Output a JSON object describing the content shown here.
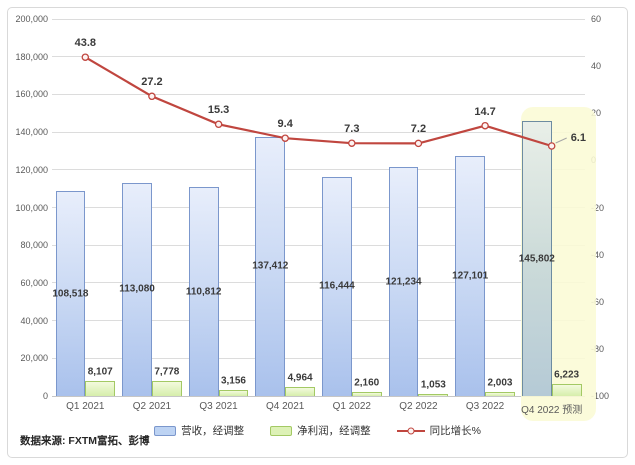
{
  "chart_data": {
    "type": "bar+line combo",
    "categories": [
      "Q1 2021",
      "Q2 2021",
      "Q3 2021",
      "Q4 2021",
      "Q1 2022",
      "Q2 2022",
      "Q3 2022",
      "Q4 2022 预测"
    ],
    "series": [
      {
        "name": "营收，经调整",
        "type": "bar",
        "axis": "left",
        "values": [
          108518,
          113080,
          110812,
          137412,
          116444,
          121234,
          127101,
          145802
        ],
        "labels": [
          "108,518",
          "113,080",
          "110,812",
          "137,412",
          "116,444",
          "121,234",
          "127,101",
          "145,802"
        ]
      },
      {
        "name": "净利润，经调整",
        "type": "bar",
        "axis": "left",
        "values": [
          8107,
          7778,
          3156,
          4964,
          2160,
          1053,
          2003,
          6223
        ],
        "labels": [
          "8,107",
          "7,778",
          "3,156",
          "4,964",
          "2,160",
          "1,053",
          "2,003",
          "6,223"
        ]
      },
      {
        "name": "同比增长%",
        "type": "line",
        "axis": "right",
        "values": [
          43.8,
          27.2,
          15.3,
          9.4,
          7.3,
          7.2,
          14.7,
          6.1
        ],
        "labels": [
          "43.8",
          "27.2",
          "15.3",
          "9.4",
          "7.3",
          "7.2",
          "14.7",
          "6.1"
        ]
      }
    ],
    "left_axis": {
      "min": 0,
      "max": 200000,
      "step": 20000,
      "tick_labels": [
        "200,000",
        "180,000",
        "160,000",
        "140,000",
        "120,000",
        "100,000",
        "80,000",
        "60,000",
        "40,000",
        "20,000",
        "0"
      ]
    },
    "right_axis": {
      "min": -100,
      "max": 60,
      "step": 20,
      "tick_labels": [
        "60",
        "40",
        "20",
        "0",
        "-20",
        "-40",
        "-60",
        "-80",
        "-100"
      ]
    },
    "highlight_category": "Q4 2022 预测",
    "grid": true,
    "legend_position": "bottom"
  },
  "colors": {
    "revenue_bar": "#aecbf0",
    "revenue_border": "#7b97cc",
    "profit_bar": "#ddf1b6",
    "profit_border": "#a3c964",
    "growth_line": "#c0463f",
    "forecast_bar": "#c3d4dc",
    "forecast_border": "#6d8ca1",
    "highlight_bg": "#fafad5",
    "gridline": "#dcdcdc"
  },
  "source": {
    "label": "数据来源: FXTM富拓、彭博"
  }
}
